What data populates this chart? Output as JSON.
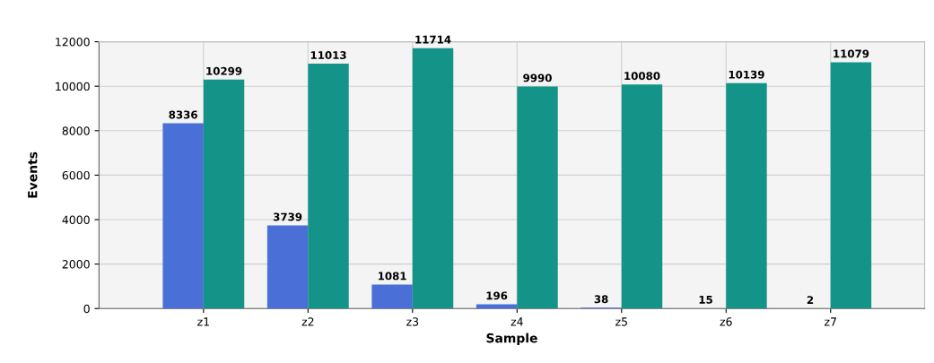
{
  "chart_data": {
    "type": "bar",
    "xlabel": "Sample",
    "ylabel": "Events",
    "categories": [
      "z1",
      "z2",
      "z3",
      "z4",
      "z5",
      "z6",
      "z7"
    ],
    "series": [
      {
        "color": "#4a6fd6",
        "values": [
          8336,
          3739,
          1081,
          196,
          38,
          15,
          2
        ]
      },
      {
        "color": "#149488",
        "values": [
          10299,
          11013,
          11714,
          9990,
          10080,
          10139,
          11079
        ]
      }
    ],
    "ylim": [
      0,
      12000
    ],
    "yticks": [
      0,
      2000,
      4000,
      6000,
      8000,
      10000,
      12000
    ],
    "grid": true,
    "data_labels": true
  }
}
